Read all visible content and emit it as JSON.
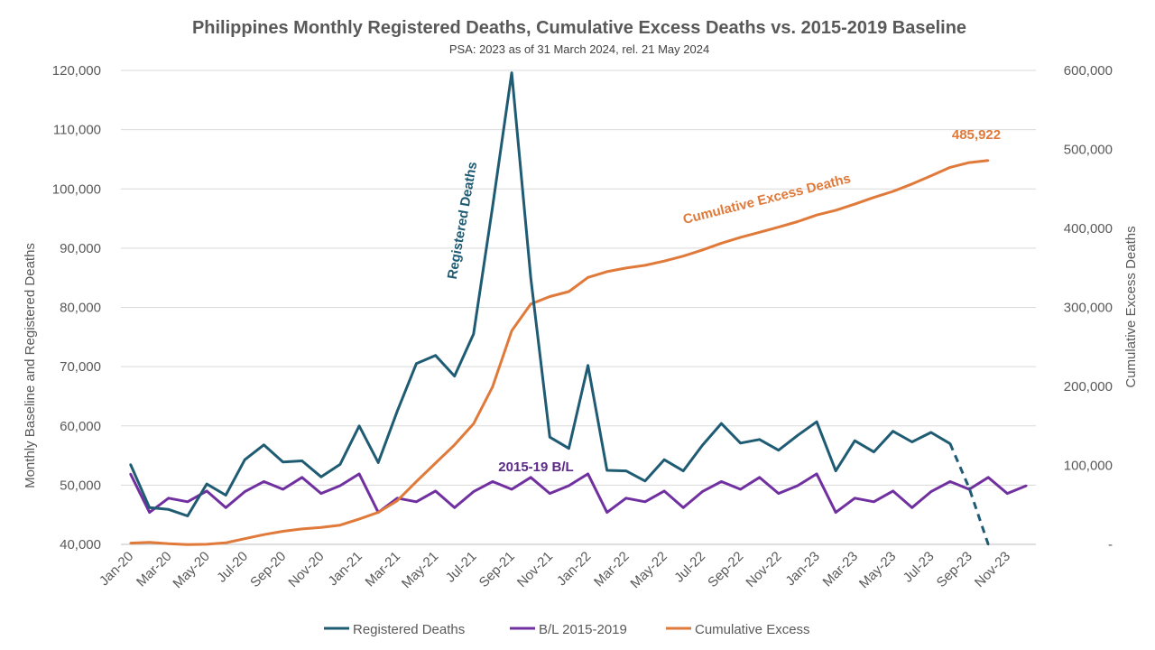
{
  "chart_data": {
    "type": "line",
    "title": "Philippines Monthly Registered Deaths, Cumulative Excess Deaths vs. 2015-2019 Baseline",
    "subtitle": "PSA: 2023 as of 31 March 2024, rel. 21 May 2024",
    "ylabel_left": "Monthly Baseline and Registered Deaths",
    "ylabel_right": "Cumulative Excess Deaths",
    "ylim_left": [
      40000,
      120000
    ],
    "ylim_right": [
      0,
      600000
    ],
    "yticks_left": [
      "40,000",
      "50,000",
      "60,000",
      "70,000",
      "80,000",
      "90,000",
      "100,000",
      "110,000",
      "120,000"
    ],
    "yticks_right": [
      "-",
      "100,000",
      "200,000",
      "300,000",
      "400,000",
      "500,000",
      "600,000"
    ],
    "x_tick_labels": [
      "Jan-20",
      "Mar-20",
      "May-20",
      "Jul-20",
      "Sep-20",
      "Nov-20",
      "Jan-21",
      "Mar-21",
      "May-21",
      "Jul-21",
      "Sep-21",
      "Nov-21",
      "Jan-22",
      "Mar-22",
      "May-22",
      "Jul-22",
      "Sep-22",
      "Nov-22",
      "Jan-23",
      "Mar-23",
      "May-23",
      "Jul-23",
      "Sep-23",
      "Nov-23"
    ],
    "x_start": "Jan-20",
    "months": 48,
    "grid": true,
    "legend_position": "bottom",
    "series": [
      {
        "name": "Registered Deaths",
        "axis": "left",
        "color": "#1f5c74",
        "values": [
          53500,
          46200,
          45900,
          44800,
          50200,
          48300,
          54300,
          56800,
          53900,
          54100,
          51400,
          53500,
          60000,
          53800,
          62500,
          70500,
          71900,
          68400,
          75500,
          97000,
          119600,
          85000,
          58100,
          56200,
          70200,
          52500,
          52400,
          50700,
          54300,
          52400,
          56700,
          60400,
          57100,
          57700,
          55900,
          58400,
          60700,
          52400,
          57500,
          55600,
          59100,
          57300,
          58900,
          57000,
          49500,
          40000
        ],
        "dashed_from_index": 43
      },
      {
        "name": "B/L 2015-2019",
        "axis": "left",
        "color": "#7030a0",
        "values": [
          51900,
          45400,
          47800,
          47200,
          49000,
          46200,
          48900,
          50600,
          49300,
          51300,
          48600,
          49900,
          51900,
          45400,
          47800,
          47200,
          49000,
          46200,
          48900,
          50600,
          49300,
          51300,
          48600,
          49900,
          51900,
          45400,
          47800,
          47200,
          49000,
          46200,
          48900,
          50600,
          49300,
          51300,
          48600,
          49900,
          51900,
          45400,
          47800,
          47200,
          49000,
          46200,
          48900,
          50600,
          49300,
          51300,
          48600,
          49900
        ]
      },
      {
        "name": "Cumulative Excess",
        "axis": "right",
        "color": "#e07a3a",
        "values": [
          1600,
          2500,
          800,
          -300,
          100,
          2000,
          7200,
          12300,
          16600,
          19500,
          21400,
          24300,
          32100,
          40600,
          55300,
          79600,
          102900,
          125900,
          152700,
          199600,
          270400,
          304200,
          313700,
          320000,
          338000,
          345300,
          349800,
          353300,
          358600,
          364900,
          372700,
          381300,
          388700,
          395100,
          401600,
          408600,
          416900,
          423000,
          430800,
          439200,
          446900,
          456200,
          466600,
          477300,
          483300,
          485922
        ]
      }
    ],
    "annotations": {
      "registered_deaths": "Registered Deaths",
      "baseline": "2015-19 B/L",
      "cumulative": "Cumulative Excess Deaths",
      "final_value": "485,922"
    }
  }
}
